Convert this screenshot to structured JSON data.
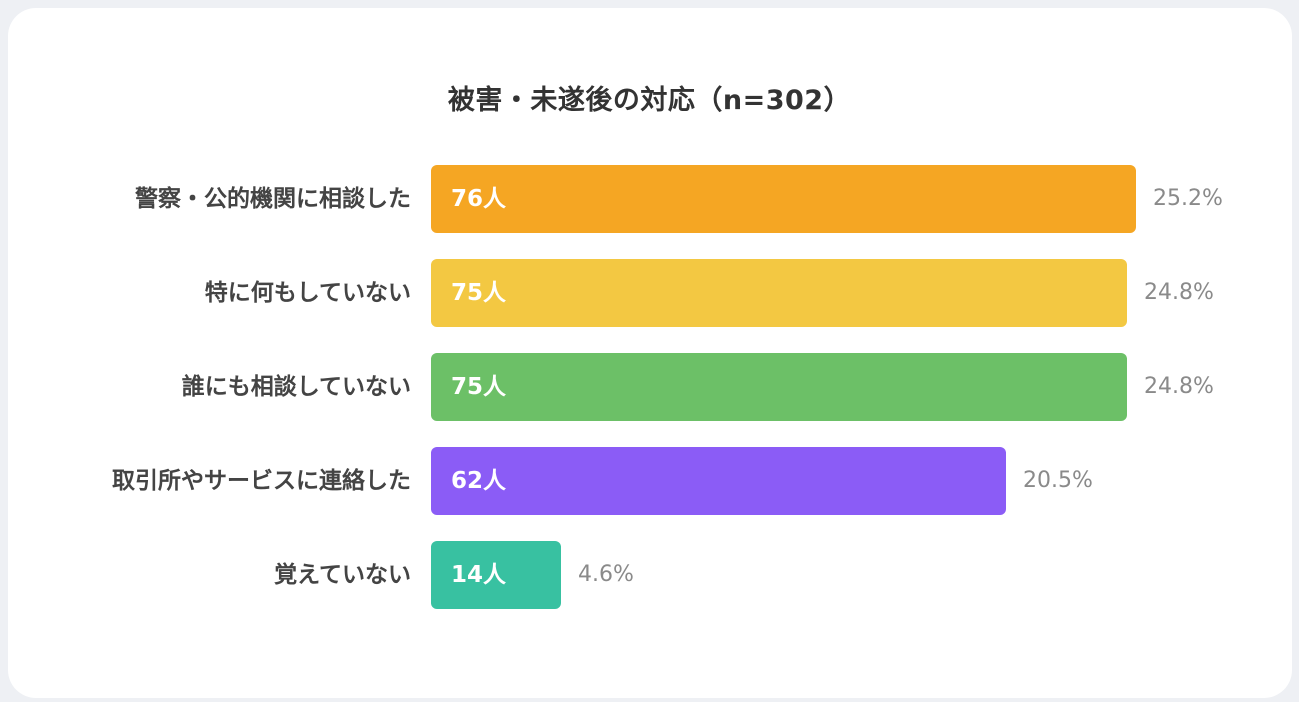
{
  "chart_data": {
    "type": "bar",
    "orientation": "horizontal",
    "title": "被害・未遂後の対応（n=302）",
    "categories": [
      "警察・公的機関に相談した",
      "特に何もしていない",
      "誰にも相談していない",
      "取引所やサービスに連絡した",
      "覚えていない"
    ],
    "values": [
      76,
      75,
      75,
      62,
      14
    ],
    "value_labels": [
      "76人",
      "75人",
      "75人",
      "62人",
      "14人"
    ],
    "percent_labels": [
      "25.2%",
      "24.8%",
      "24.8%",
      "20.5%",
      "4.6%"
    ],
    "colors": [
      "#f5a623",
      "#f3c842",
      "#6cc067",
      "#8b5cf6",
      "#38c1a1"
    ],
    "xlim": [
      0,
      76
    ],
    "grid": false,
    "legend": "none"
  }
}
